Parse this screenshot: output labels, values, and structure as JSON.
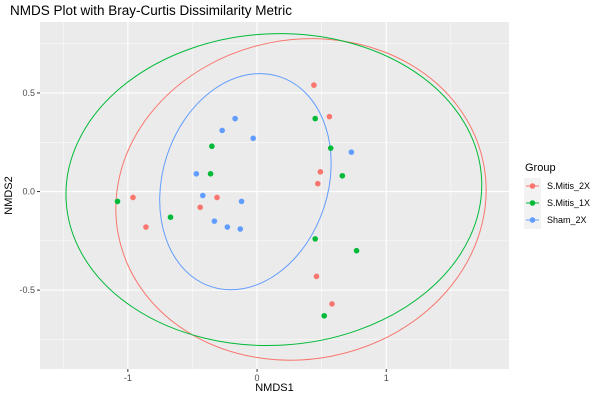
{
  "chart_data": {
    "type": "scatter",
    "title": "NMDS Plot with Bray-Curtis Dissimilarity Metric",
    "xlabel": "NMDS1",
    "ylabel": "NMDS2",
    "xlim": [
      -1.68,
      1.95
    ],
    "ylim": [
      -0.9,
      0.86
    ],
    "x_ticks": [
      {
        "value": -1,
        "label": "-1"
      },
      {
        "value": 0,
        "label": "0"
      },
      {
        "value": 1,
        "label": "1"
      }
    ],
    "y_ticks": [
      {
        "value": 0.5,
        "label": "0.5"
      },
      {
        "value": 0,
        "label": "0.0"
      },
      {
        "value": -0.5,
        "label": "-0.5"
      }
    ],
    "grid": true,
    "legend": {
      "title": "Group",
      "position": "right"
    },
    "series": [
      {
        "name": "S.Mitis_2X",
        "color": "#F8766D",
        "points": [
          [
            0.44,
            0.54
          ],
          [
            0.56,
            0.38
          ],
          [
            0.47,
            0.04
          ],
          [
            0.49,
            0.1
          ],
          [
            -0.96,
            -0.03
          ],
          [
            -0.86,
            -0.18
          ],
          [
            -0.44,
            -0.08
          ],
          [
            -0.31,
            -0.03
          ],
          [
            0.46,
            -0.43
          ],
          [
            0.58,
            -0.57
          ]
        ],
        "ellipse": {
          "cx": 0.34,
          "cy": -0.04,
          "rx": 1.44,
          "ry": 0.81,
          "rotation_deg": -11
        }
      },
      {
        "name": "S.Mitis_1X",
        "color": "#00BA38",
        "points": [
          [
            0.45,
            0.37
          ],
          [
            0.57,
            0.22
          ],
          [
            0.66,
            0.08
          ],
          [
            -0.35,
            0.23
          ],
          [
            -0.36,
            0.09
          ],
          [
            -1.08,
            -0.05
          ],
          [
            -0.67,
            -0.13
          ],
          [
            0.45,
            -0.24
          ],
          [
            0.77,
            -0.3
          ],
          [
            0.52,
            -0.63
          ]
        ],
        "ellipse": {
          "cx": 0.13,
          "cy": 0.01,
          "rx": 1.61,
          "ry": 0.79,
          "rotation_deg": -3
        }
      },
      {
        "name": "Sham_2X",
        "color": "#619CFF",
        "points": [
          [
            -0.17,
            0.37
          ],
          [
            -0.27,
            0.31
          ],
          [
            -0.03,
            0.27
          ],
          [
            0.73,
            0.2
          ],
          [
            -0.47,
            0.09
          ],
          [
            -0.42,
            -0.02
          ],
          [
            -0.12,
            -0.05
          ],
          [
            -0.33,
            -0.15
          ],
          [
            -0.23,
            -0.18
          ],
          [
            -0.13,
            -0.19
          ]
        ],
        "ellipse": {
          "cx": -0.09,
          "cy": 0.05,
          "rx": 0.64,
          "ry": 0.56,
          "rotation_deg": 18
        }
      }
    ]
  }
}
